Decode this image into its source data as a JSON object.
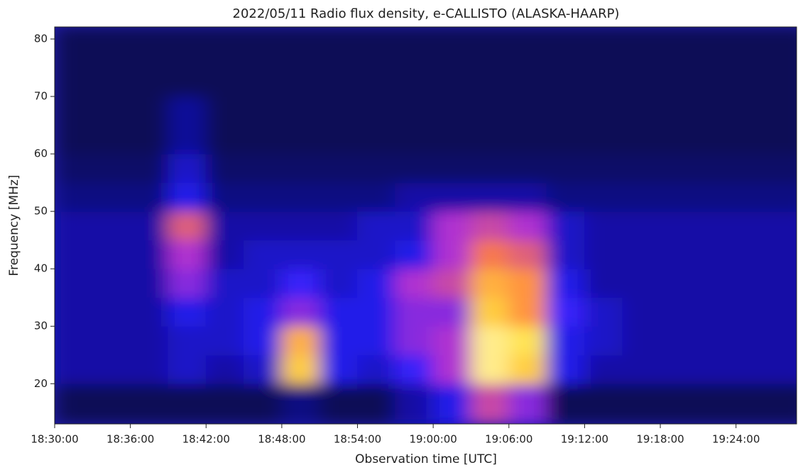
{
  "chart_data": {
    "type": "heatmap",
    "title": "2022/05/11  Radio flux density, e-CALLISTO (ALASKA-HAARP)",
    "xlabel": "Observation time [UTC]",
    "ylabel": "Frequency [MHz]",
    "xlim": [
      66600,
      70128
    ],
    "ylim": [
      13,
      82.1
    ],
    "xticks": [
      {
        "value": 66600,
        "label": "18:30:00"
      },
      {
        "value": 66960,
        "label": "18:36:00"
      },
      {
        "value": 67320,
        "label": "18:42:00"
      },
      {
        "value": 67680,
        "label": "18:48:00"
      },
      {
        "value": 68040,
        "label": "18:54:00"
      },
      {
        "value": 68400,
        "label": "19:00:00"
      },
      {
        "value": 68760,
        "label": "19:06:00"
      },
      {
        "value": 69120,
        "label": "19:12:00"
      },
      {
        "value": 69480,
        "label": "19:18:00"
      },
      {
        "value": 69840,
        "label": "19:24:00"
      }
    ],
    "yticks": [
      20,
      30,
      40,
      50,
      60,
      70,
      80
    ],
    "x_edges": [
      66600,
      66780,
      66960,
      67140,
      67320,
      67500,
      67680,
      67860,
      68040,
      68220,
      68400,
      68580,
      68760,
      68940,
      69120,
      69300,
      69480,
      69660,
      69840,
      70020,
      70200
    ],
    "y_edges": [
      13,
      20,
      25,
      30,
      35,
      40,
      45,
      50,
      55,
      60,
      65,
      70,
      75,
      82.1
    ],
    "z": [
      [
        0.1,
        0.1,
        0.1,
        0.1,
        0.1,
        0.1,
        0.15,
        0.1,
        0.1,
        0.2,
        0.3,
        0.55,
        0.45,
        0.1,
        0.1,
        0.1,
        0.1,
        0.1,
        0.1,
        0.1
      ],
      [
        0.2,
        0.2,
        0.2,
        0.25,
        0.2,
        0.25,
        0.8,
        0.3,
        0.25,
        0.35,
        0.5,
        0.9,
        0.8,
        0.3,
        0.2,
        0.2,
        0.2,
        0.2,
        0.2,
        0.2
      ],
      [
        0.2,
        0.2,
        0.2,
        0.25,
        0.25,
        0.3,
        0.75,
        0.3,
        0.3,
        0.45,
        0.5,
        0.9,
        0.85,
        0.3,
        0.25,
        0.2,
        0.2,
        0.2,
        0.2,
        0.2
      ],
      [
        0.2,
        0.2,
        0.2,
        0.3,
        0.25,
        0.3,
        0.45,
        0.3,
        0.3,
        0.45,
        0.45,
        0.8,
        0.7,
        0.35,
        0.25,
        0.2,
        0.2,
        0.2,
        0.2,
        0.2
      ],
      [
        0.2,
        0.2,
        0.2,
        0.45,
        0.25,
        0.25,
        0.35,
        0.25,
        0.3,
        0.5,
        0.55,
        0.75,
        0.7,
        0.3,
        0.2,
        0.2,
        0.2,
        0.2,
        0.2,
        0.2
      ],
      [
        0.2,
        0.2,
        0.2,
        0.5,
        0.2,
        0.25,
        0.25,
        0.25,
        0.25,
        0.3,
        0.5,
        0.65,
        0.6,
        0.25,
        0.2,
        0.2,
        0.2,
        0.2,
        0.2,
        0.2
      ],
      [
        0.2,
        0.2,
        0.2,
        0.6,
        0.2,
        0.2,
        0.2,
        0.2,
        0.25,
        0.25,
        0.5,
        0.55,
        0.5,
        0.25,
        0.2,
        0.2,
        0.2,
        0.2,
        0.2,
        0.2
      ],
      [
        0.15,
        0.15,
        0.15,
        0.3,
        0.15,
        0.15,
        0.15,
        0.15,
        0.15,
        0.2,
        0.2,
        0.2,
        0.2,
        0.15,
        0.15,
        0.15,
        0.15,
        0.15,
        0.15,
        0.15
      ],
      [
        0.12,
        0.12,
        0.12,
        0.25,
        0.12,
        0.12,
        0.12,
        0.12,
        0.12,
        0.12,
        0.12,
        0.12,
        0.12,
        0.12,
        0.12,
        0.12,
        0.12,
        0.12,
        0.12,
        0.12
      ],
      [
        0.1,
        0.1,
        0.1,
        0.18,
        0.1,
        0.1,
        0.1,
        0.1,
        0.1,
        0.1,
        0.1,
        0.1,
        0.1,
        0.1,
        0.1,
        0.1,
        0.1,
        0.1,
        0.1,
        0.1
      ],
      [
        0.1,
        0.1,
        0.1,
        0.18,
        0.1,
        0.1,
        0.1,
        0.1,
        0.1,
        0.1,
        0.1,
        0.1,
        0.1,
        0.1,
        0.1,
        0.1,
        0.1,
        0.1,
        0.1,
        0.1
      ],
      [
        0.1,
        0.1,
        0.1,
        0.1,
        0.1,
        0.1,
        0.1,
        0.1,
        0.1,
        0.1,
        0.1,
        0.1,
        0.1,
        0.1,
        0.1,
        0.1,
        0.1,
        0.1,
        0.1,
        0.1
      ],
      [
        0.1,
        0.1,
        0.1,
        0.1,
        0.1,
        0.1,
        0.1,
        0.1,
        0.1,
        0.1,
        0.1,
        0.1,
        0.1,
        0.1,
        0.1,
        0.1,
        0.1,
        0.1,
        0.1,
        0.1
      ]
    ],
    "colormap": [
      "#000000",
      "#0c0c90",
      "#2a20ff",
      "#b030d0",
      "#ff8040",
      "#ffe040",
      "#ffffff"
    ]
  }
}
